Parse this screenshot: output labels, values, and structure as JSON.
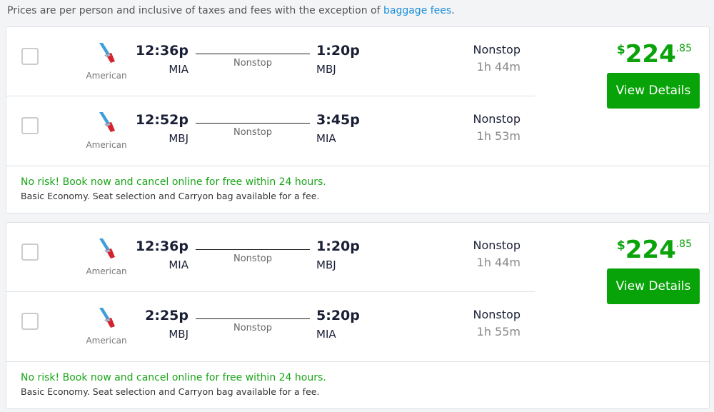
{
  "notice": {
    "text": "Prices are per person and inclusive of taxes and fees with the exception of ",
    "link": "baggage fees",
    "end": "."
  },
  "results": [
    {
      "price": {
        "currency": "$",
        "whole": "224",
        "cents": ".85"
      },
      "button": "View Details",
      "legs": [
        {
          "airline": "American",
          "dep_time": "12:36p",
          "dep_airport": "MIA",
          "arr_time": "1:20p",
          "arr_airport": "MBJ",
          "stops": "Nonstop",
          "stops_label": "Nonstop",
          "duration": "1h 44m"
        },
        {
          "airline": "American",
          "dep_time": "12:52p",
          "dep_airport": "MBJ",
          "arr_time": "3:45p",
          "arr_airport": "MIA",
          "stops": "Nonstop",
          "stops_label": "Nonstop",
          "duration": "1h 53m"
        }
      ],
      "risk": "No risk! Book now and cancel online for free within 24 hours.",
      "fare": "Basic Economy. Seat selection and Carryon bag available for a fee."
    },
    {
      "price": {
        "currency": "$",
        "whole": "224",
        "cents": ".85"
      },
      "button": "View Details",
      "legs": [
        {
          "airline": "American",
          "dep_time": "12:36p",
          "dep_airport": "MIA",
          "arr_time": "1:20p",
          "arr_airport": "MBJ",
          "stops": "Nonstop",
          "stops_label": "Nonstop",
          "duration": "1h 44m"
        },
        {
          "airline": "American",
          "dep_time": "2:25p",
          "dep_airport": "MBJ",
          "arr_time": "5:20p",
          "arr_airport": "MIA",
          "stops": "Nonstop",
          "stops_label": "Nonstop",
          "duration": "1h 55m"
        }
      ],
      "risk": "No risk! Book now and cancel online for free within 24 hours.",
      "fare": "Basic Economy. Seat selection and Carryon bag available for a fee."
    }
  ],
  "colors": {
    "accent": "#08a308",
    "link": "#1a8fd8"
  }
}
